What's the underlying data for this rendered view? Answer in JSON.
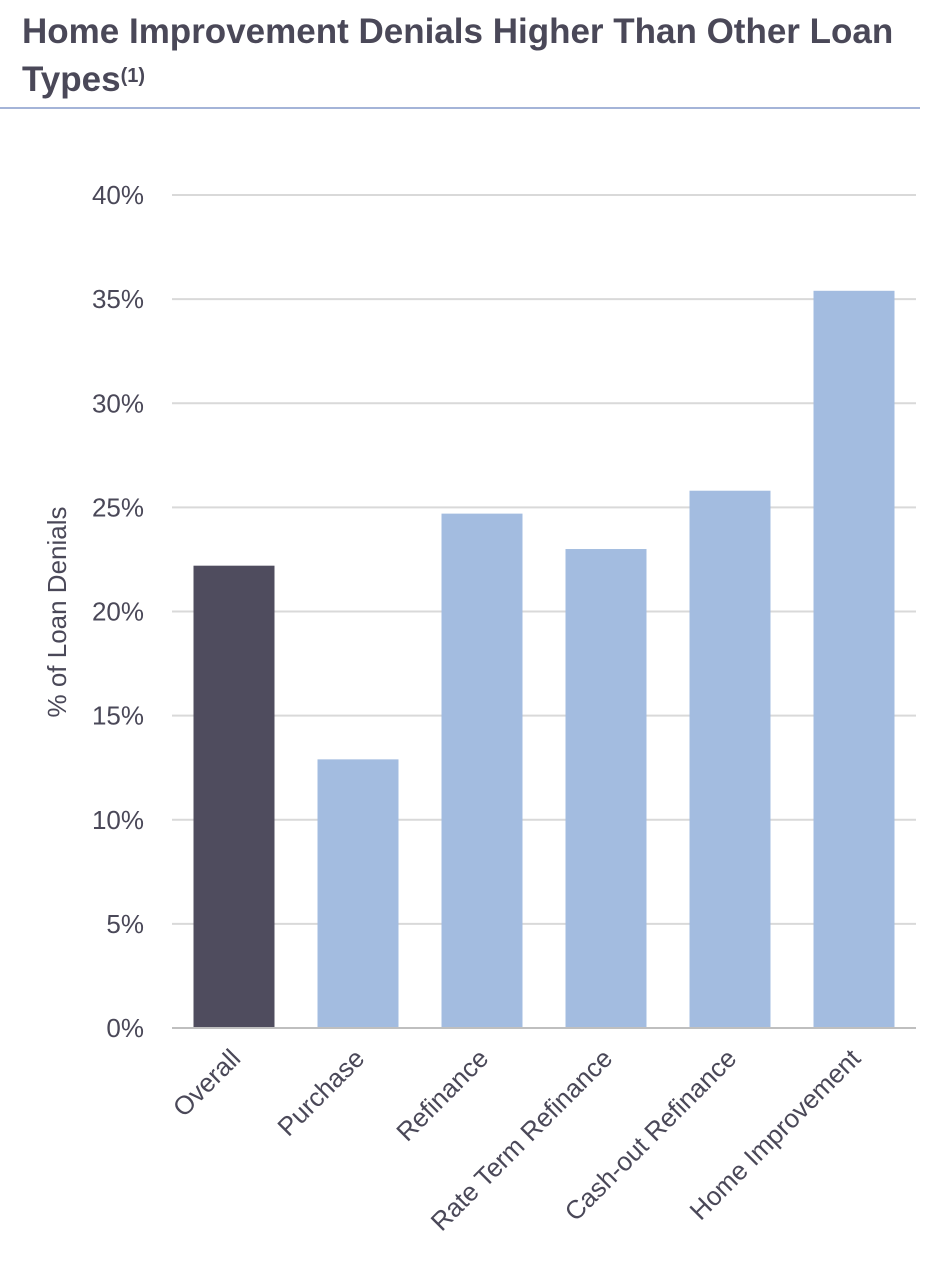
{
  "title": {
    "text": "Home Improvement Denials Higher Than Other Loan Types",
    "footnote": "(1)"
  },
  "chart_data": {
    "type": "bar",
    "ylabel": "% of Loan Denials",
    "ylim": [
      0,
      40
    ],
    "yticks": [
      0,
      5,
      10,
      15,
      20,
      25,
      30,
      35,
      40
    ],
    "ytick_labels": [
      "0%",
      "5%",
      "10%",
      "15%",
      "20%",
      "25%",
      "30%",
      "35%",
      "40%"
    ],
    "grid": true,
    "categories": [
      "Overall",
      "Purchase",
      "Refinance",
      "Rate Term Refinance",
      "Cash-out Refinance",
      "Home Improvement"
    ],
    "values": [
      22.2,
      12.9,
      24.7,
      23.0,
      25.8,
      35.4
    ],
    "colors": [
      "#4f4c5e",
      "#a3bce0",
      "#a3bce0",
      "#a3bce0",
      "#a3bce0",
      "#a3bce0"
    ],
    "gridline_color": "#d9d9d9",
    "axis_color": "#bfbfbf"
  }
}
